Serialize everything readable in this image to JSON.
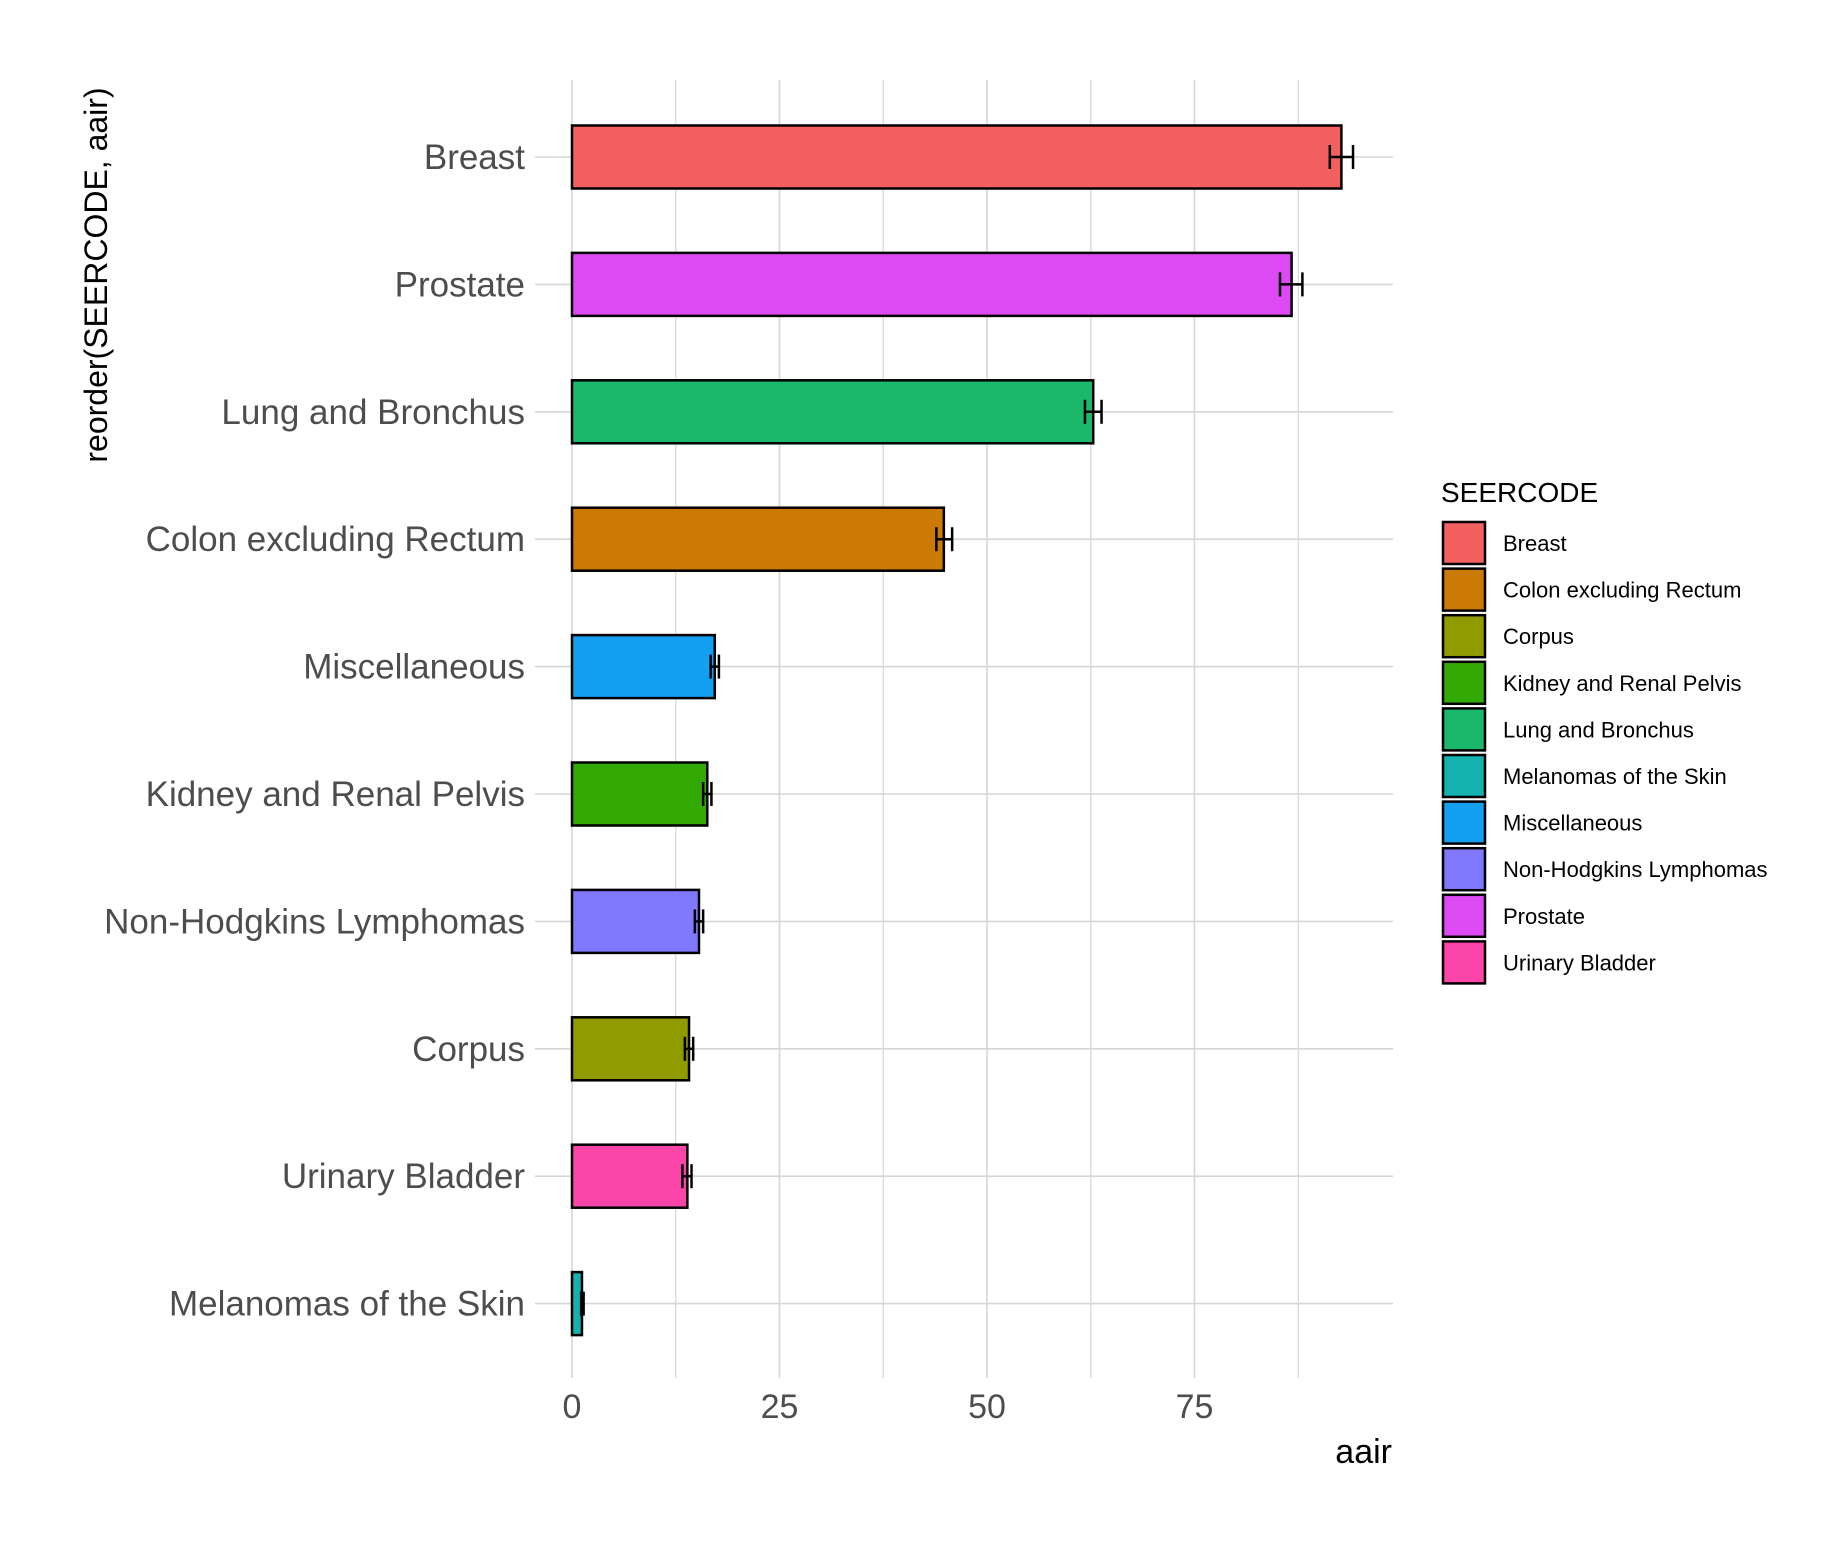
{
  "chart_data": {
    "type": "bar",
    "orientation": "horizontal",
    "title": "",
    "xlabel": "aair",
    "ylabel": "reorder(SEERCODE, aair)",
    "xlim": [
      0,
      99
    ],
    "xticks": [
      0,
      25,
      50,
      75
    ],
    "xtick_labels": [
      "0",
      "25",
      "50",
      "75"
    ],
    "grid": true,
    "legend_position": "right",
    "legend_title": "SEERCODE",
    "categories": [
      "Breast",
      "Prostate",
      "Lung and Bronchus",
      "Colon excluding Rectum",
      "Miscellaneous",
      "Kidney and Renal Pelvis",
      "Non-Hodgkins Lymphomas",
      "Corpus",
      "Urinary Bladder",
      "Melanomas of the Skin"
    ],
    "values": [
      92.7,
      86.7,
      62.8,
      44.8,
      17.2,
      16.3,
      15.3,
      14.1,
      13.9,
      1.2
    ],
    "error_low": [
      91.3,
      85.3,
      61.8,
      43.9,
      16.7,
      15.8,
      14.8,
      13.6,
      13.3,
      1.1
    ],
    "error_high": [
      94.1,
      88.0,
      63.8,
      45.8,
      17.7,
      16.8,
      15.8,
      14.6,
      14.4,
      1.4
    ],
    "colors": [
      "#F2605F",
      "#DD49F2",
      "#1BB76A",
      "#CC7A06",
      "#14A0F0",
      "#33A903",
      "#8079FE",
      "#909B00",
      "#FC45A9",
      "#14B3B0"
    ],
    "legend": [
      {
        "label": "Breast",
        "color": "#F2605F"
      },
      {
        "label": "Colon excluding Rectum",
        "color": "#CC7A06"
      },
      {
        "label": "Corpus",
        "color": "#909B00"
      },
      {
        "label": "Kidney and Renal Pelvis",
        "color": "#33A903"
      },
      {
        "label": "Lung and Bronchus",
        "color": "#1BB76A"
      },
      {
        "label": "Melanomas of the Skin",
        "color": "#14B3B0"
      },
      {
        "label": "Miscellaneous",
        "color": "#14A0F0"
      },
      {
        "label": "Non-Hodgkins Lymphomas",
        "color": "#8079FE"
      },
      {
        "label": "Prostate",
        "color": "#DD49F2"
      },
      {
        "label": "Urinary Bladder",
        "color": "#FC45A9"
      }
    ]
  }
}
